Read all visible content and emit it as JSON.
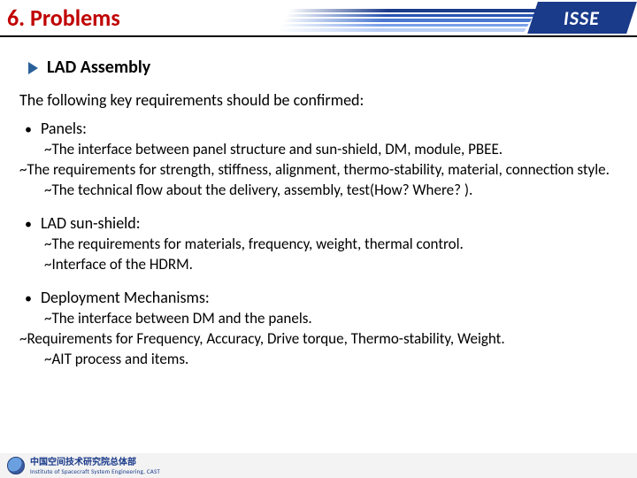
{
  "header": {
    "title": "6. Problems",
    "logo_text": "ISSE",
    "stripe_colors": [
      "#1a3a8a",
      "#2a54b0",
      "#4a78d0",
      "#7aa0e8",
      "#b8cef5"
    ]
  },
  "subhead": {
    "label": "LAD Assembly",
    "arrow_color": "#2a6099"
  },
  "intro": "The following key requirements should be confirmed:",
  "sections": [
    {
      "title": "Panels:",
      "lines": [
        {
          "indent": "ind1",
          "text": "~The interface between panel structure and sun-shield,  DM, module, PBEE."
        },
        {
          "indent": "ind2",
          "text": "~The requirements for strength, stiffness, alignment, thermo-stability, material, connection style.",
          "justify": true
        },
        {
          "indent": "ind1",
          "text": "~The technical flow about the delivery, assembly, test(How? Where? )."
        }
      ]
    },
    {
      "title": "LAD sun-shield:",
      "lines": [
        {
          "indent": "ind1",
          "text": "~The requirements for materials, frequency, weight, thermal control."
        },
        {
          "indent": "ind1",
          "text": "~Interface of the HDRM."
        }
      ]
    },
    {
      "title": "Deployment Mechanisms:",
      "lines": [
        {
          "indent": "ind1",
          "text": "~The interface between DM and the panels."
        },
        {
          "indent": "ind2",
          "text": "~Requirements for Frequency, Accuracy, Drive torque, Thermo-stability, Weight.",
          "justify": true
        },
        {
          "indent": "ind1",
          "text": "~AIT process and items."
        }
      ]
    }
  ],
  "footer": {
    "cn": "中国空间技术研究院总体部",
    "en": "Institute of Spacecraft System Engineering, CAST"
  },
  "colors": {
    "title_color": "#c00000",
    "logo_bg": "#1a3a8a",
    "text": "#000000"
  }
}
